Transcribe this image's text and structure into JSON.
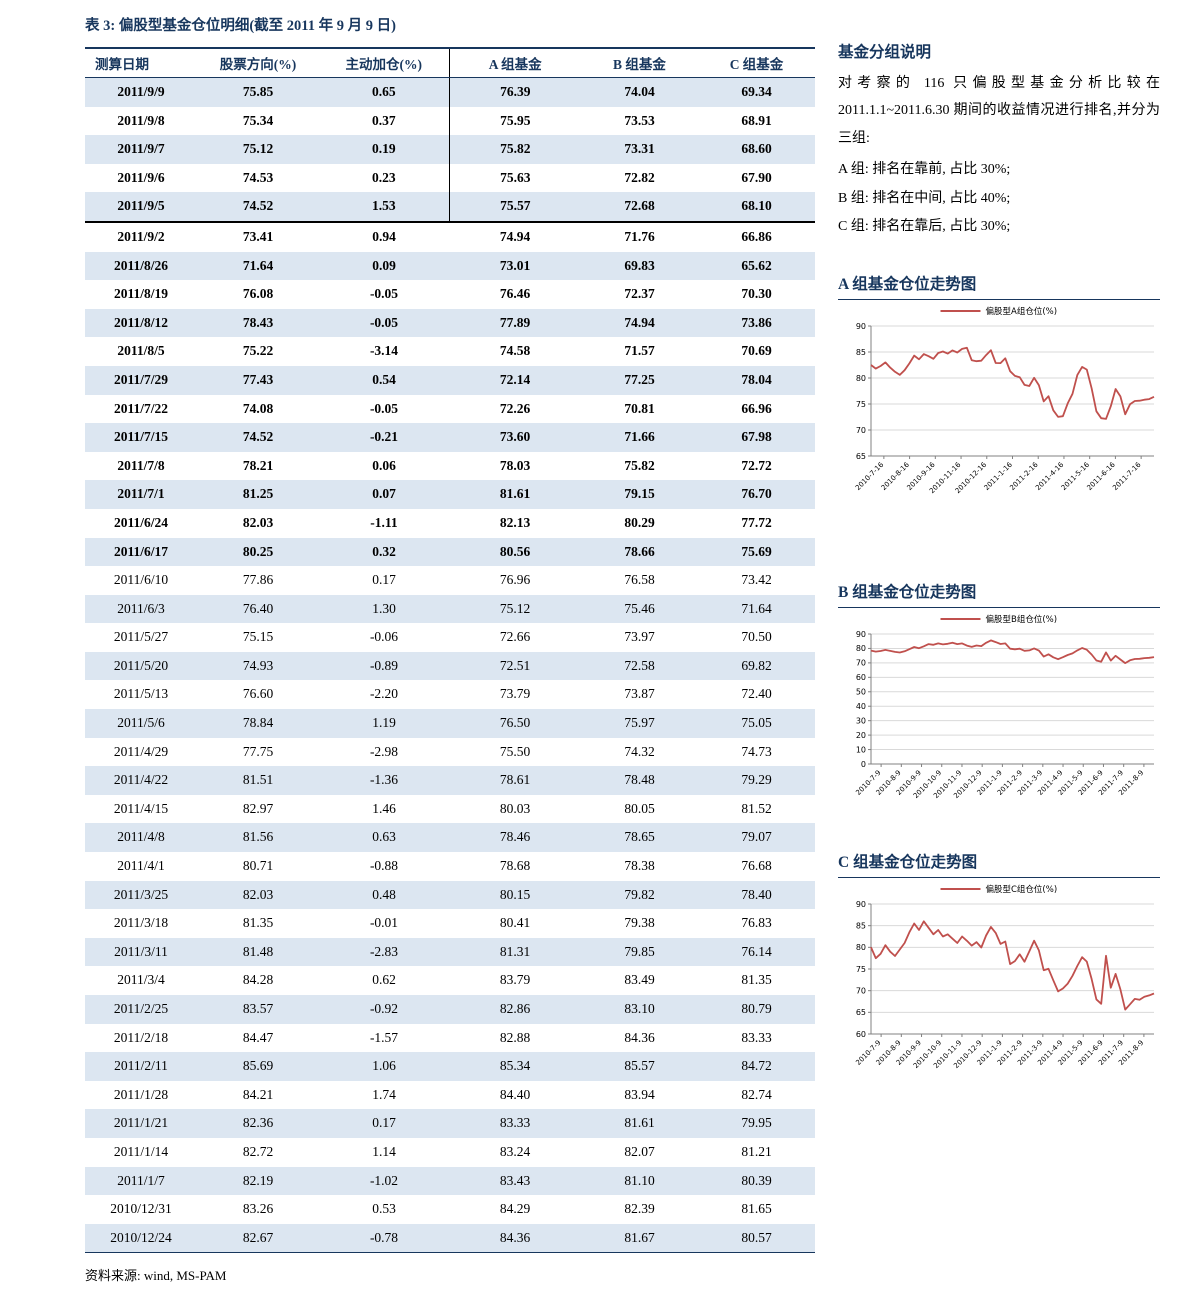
{
  "colors": {
    "accent": "#17365D",
    "stripe": "#DCE6F1",
    "series_line": "#C0504D"
  },
  "table": {
    "title": "表 3: 偏股型基金仓位明细(截至 2011 年 9 月 9 日)",
    "columns": [
      "测算日期",
      "股票方向(%)",
      "主动加仓(%)",
      "A 组基金",
      "B 组基金",
      "C 组基金"
    ],
    "bold_row_count": 17,
    "divider_after_row": 5,
    "source": "资料来源: wind, MS-PAM",
    "rows": [
      [
        "2011/9/9",
        "75.85",
        "0.65",
        "76.39",
        "74.04",
        "69.34"
      ],
      [
        "2011/9/8",
        "75.34",
        "0.37",
        "75.95",
        "73.53",
        "68.91"
      ],
      [
        "2011/9/7",
        "75.12",
        "0.19",
        "75.82",
        "73.31",
        "68.60"
      ],
      [
        "2011/9/6",
        "74.53",
        "0.23",
        "75.63",
        "72.82",
        "67.90"
      ],
      [
        "2011/9/5",
        "74.52",
        "1.53",
        "75.57",
        "72.68",
        "68.10"
      ],
      [
        "2011/9/2",
        "73.41",
        "0.94",
        "74.94",
        "71.76",
        "66.86"
      ],
      [
        "2011/8/26",
        "71.64",
        "0.09",
        "73.01",
        "69.83",
        "65.62"
      ],
      [
        "2011/8/19",
        "76.08",
        "-0.05",
        "76.46",
        "72.37",
        "70.30"
      ],
      [
        "2011/8/12",
        "78.43",
        "-0.05",
        "77.89",
        "74.94",
        "73.86"
      ],
      [
        "2011/8/5",
        "75.22",
        "-3.14",
        "74.58",
        "71.57",
        "70.69"
      ],
      [
        "2011/7/29",
        "77.43",
        "0.54",
        "72.14",
        "77.25",
        "78.04"
      ],
      [
        "2011/7/22",
        "74.08",
        "-0.05",
        "72.26",
        "70.81",
        "66.96"
      ],
      [
        "2011/7/15",
        "74.52",
        "-0.21",
        "73.60",
        "71.66",
        "67.98"
      ],
      [
        "2011/7/8",
        "78.21",
        "0.06",
        "78.03",
        "75.82",
        "72.72"
      ],
      [
        "2011/7/1",
        "81.25",
        "0.07",
        "81.61",
        "79.15",
        "76.70"
      ],
      [
        "2011/6/24",
        "82.03",
        "-1.11",
        "82.13",
        "80.29",
        "77.72"
      ],
      [
        "2011/6/17",
        "80.25",
        "0.32",
        "80.56",
        "78.66",
        "75.69"
      ],
      [
        "2011/6/10",
        "77.86",
        "0.17",
        "76.96",
        "76.58",
        "73.42"
      ],
      [
        "2011/6/3",
        "76.40",
        "1.30",
        "75.12",
        "75.46",
        "71.64"
      ],
      [
        "2011/5/27",
        "75.15",
        "-0.06",
        "72.66",
        "73.97",
        "70.50"
      ],
      [
        "2011/5/20",
        "74.93",
        "-0.89",
        "72.51",
        "72.58",
        "69.82"
      ],
      [
        "2011/5/13",
        "76.60",
        "-2.20",
        "73.79",
        "73.87",
        "72.40"
      ],
      [
        "2011/5/6",
        "78.84",
        "1.19",
        "76.50",
        "75.97",
        "75.05"
      ],
      [
        "2011/4/29",
        "77.75",
        "-2.98",
        "75.50",
        "74.32",
        "74.73"
      ],
      [
        "2011/4/22",
        "81.51",
        "-1.36",
        "78.61",
        "78.48",
        "79.29"
      ],
      [
        "2011/4/15",
        "82.97",
        "1.46",
        "80.03",
        "80.05",
        "81.52"
      ],
      [
        "2011/4/8",
        "81.56",
        "0.63",
        "78.46",
        "78.65",
        "79.07"
      ],
      [
        "2011/4/1",
        "80.71",
        "-0.88",
        "78.68",
        "78.38",
        "76.68"
      ],
      [
        "2011/3/25",
        "82.03",
        "0.48",
        "80.15",
        "79.82",
        "78.40"
      ],
      [
        "2011/3/18",
        "81.35",
        "-0.01",
        "80.41",
        "79.38",
        "76.83"
      ],
      [
        "2011/3/11",
        "81.48",
        "-2.83",
        "81.31",
        "79.85",
        "76.14"
      ],
      [
        "2011/3/4",
        "84.28",
        "0.62",
        "83.79",
        "83.49",
        "81.35"
      ],
      [
        "2011/2/25",
        "83.57",
        "-0.92",
        "82.86",
        "83.10",
        "80.79"
      ],
      [
        "2011/2/18",
        "84.47",
        "-1.57",
        "82.88",
        "84.36",
        "83.33"
      ],
      [
        "2011/2/11",
        "85.69",
        "1.06",
        "85.34",
        "85.57",
        "84.72"
      ],
      [
        "2011/1/28",
        "84.21",
        "1.74",
        "84.40",
        "83.94",
        "82.74"
      ],
      [
        "2011/1/21",
        "82.36",
        "0.17",
        "83.33",
        "81.61",
        "79.95"
      ],
      [
        "2011/1/14",
        "82.72",
        "1.14",
        "83.24",
        "82.07",
        "81.21"
      ],
      [
        "2011/1/7",
        "82.19",
        "-1.02",
        "83.43",
        "81.10",
        "80.39"
      ],
      [
        "2010/12/31",
        "83.26",
        "0.53",
        "84.29",
        "82.39",
        "81.65"
      ],
      [
        "2010/12/24",
        "82.67",
        "-0.78",
        "84.36",
        "81.67",
        "80.57"
      ]
    ]
  },
  "sidebar": {
    "heading": "基金分组说明",
    "paragraph": "对考察的 116 只偏股型基金分析比较在 2011.1.1~2011.6.30 期间的收益情况进行排名,并分为三组:",
    "items": [
      "A 组: 排名在靠前, 占比 30%;",
      "B 组: 排名在中间, 占比 40%;",
      "C 组: 排名在靠后, 占比 30%;"
    ]
  },
  "chart_data": [
    {
      "id": "a",
      "type": "line",
      "title": "A 组基金仓位走势图",
      "legend": "偏股型A组仓位(%)",
      "color": "#C0504D",
      "ylim": [
        65,
        90
      ],
      "yticks": [
        65,
        70,
        75,
        80,
        85,
        90
      ],
      "xticklabels": [
        "2010-7-16",
        "2010-8-16",
        "2010-9-16",
        "2010-11-16",
        "2010-12-16",
        "2011-1-16",
        "2011-2-16",
        "2011-4-16",
        "2011-5-16",
        "2011-6-16",
        "2011-7-16"
      ],
      "values": [
        82.5,
        81.8,
        82.3,
        83.0,
        82.0,
        81.2,
        80.6,
        81.5,
        82.8,
        84.3,
        83.6,
        84.6,
        84.2,
        83.7,
        84.8,
        85.1,
        84.7,
        85.3,
        84.9,
        85.6,
        85.8,
        83.43,
        83.24,
        83.33,
        84.4,
        85.34,
        82.88,
        82.86,
        83.79,
        81.31,
        80.41,
        80.15,
        78.68,
        78.46,
        80.03,
        78.61,
        75.5,
        76.5,
        73.79,
        72.51,
        72.66,
        75.12,
        76.96,
        80.56,
        82.13,
        81.61,
        78.03,
        73.6,
        72.26,
        72.14,
        74.58,
        77.89,
        76.46,
        73.01,
        74.94,
        75.57,
        75.63,
        75.82,
        75.95,
        76.39
      ]
    },
    {
      "id": "b",
      "type": "line",
      "title": "B 组基金仓位走势图",
      "legend": "偏股型B组仓位(%)",
      "color": "#C0504D",
      "ylim": [
        0,
        90
      ],
      "yticks": [
        0,
        10,
        20,
        30,
        40,
        50,
        60,
        70,
        80,
        90
      ],
      "xticklabels": [
        "2010-7-9",
        "2010-8-9",
        "2010-9-9",
        "2010-10-9",
        "2010-11-9",
        "2010-12-9",
        "2011-1-9",
        "2011-2-9",
        "2011-3-9",
        "2011-4-9",
        "2011-5-9",
        "2011-6-9",
        "2011-7-9",
        "2011-8-9"
      ],
      "values": [
        78.5,
        77.8,
        78.2,
        79.0,
        78.3,
        77.6,
        77.2,
        78.0,
        79.5,
        81.0,
        80.2,
        81.5,
        83.0,
        82.5,
        83.5,
        82.8,
        83.2,
        84.0,
        83.0,
        83.5,
        82.0,
        81.1,
        82.07,
        81.61,
        83.94,
        85.57,
        84.36,
        83.1,
        83.49,
        79.85,
        79.38,
        79.82,
        78.38,
        78.65,
        80.05,
        78.48,
        74.32,
        75.97,
        73.87,
        72.58,
        73.97,
        75.46,
        76.58,
        78.66,
        80.29,
        79.15,
        75.82,
        71.66,
        70.81,
        77.25,
        71.57,
        74.94,
        72.37,
        69.83,
        71.76,
        72.68,
        72.82,
        73.31,
        73.53,
        74.04
      ]
    },
    {
      "id": "c",
      "type": "line",
      "title": "C 组基金仓位走势图",
      "legend": "偏股型C组仓位(%)",
      "color": "#C0504D",
      "ylim": [
        60,
        90
      ],
      "yticks": [
        60,
        65,
        70,
        75,
        80,
        85,
        90
      ],
      "xticklabels": [
        "2010-7-9",
        "2010-8-9",
        "2010-9-9",
        "2010-10-9",
        "2010-11-9",
        "2010-12-9",
        "2011-1-9",
        "2011-2-9",
        "2011-3-9",
        "2011-4-9",
        "2011-5-9",
        "2011-6-9",
        "2011-7-9",
        "2011-8-9"
      ],
      "values": [
        80.0,
        77.5,
        78.5,
        80.5,
        79.0,
        78.0,
        79.5,
        81.0,
        83.5,
        85.5,
        84.0,
        86.0,
        84.5,
        83.0,
        84.0,
        82.5,
        83.0,
        82.0,
        81.0,
        82.5,
        81.5,
        80.39,
        81.21,
        79.95,
        82.74,
        84.72,
        83.33,
        80.79,
        81.35,
        76.14,
        76.83,
        78.4,
        76.68,
        79.07,
        81.52,
        79.29,
        74.73,
        75.05,
        72.4,
        69.82,
        70.5,
        71.64,
        73.42,
        75.69,
        77.72,
        76.7,
        72.72,
        67.98,
        66.96,
        78.04,
        70.69,
        73.86,
        70.3,
        65.62,
        66.86,
        68.1,
        67.9,
        68.6,
        68.91,
        69.34
      ]
    }
  ]
}
